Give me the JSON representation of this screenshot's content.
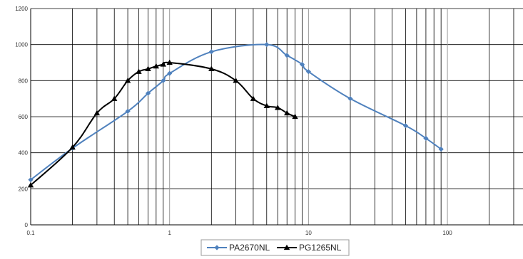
{
  "chart_data": {
    "type": "line",
    "title": "",
    "xlabel": "",
    "ylabel": "",
    "x_scale": "log",
    "xlim": [
      0.1,
      350
    ],
    "ylim": [
      0,
      1200
    ],
    "grid": true,
    "legend_position": "bottom",
    "x_tick_labels": [
      "0.1",
      "1",
      "10",
      "100"
    ],
    "y_tick_labels": [
      "0",
      "200",
      "400",
      "600",
      "800",
      "1000",
      "1200"
    ],
    "y_ticks": [
      0,
      200,
      400,
      600,
      800,
      1000,
      1200
    ],
    "series": [
      {
        "name": "PA2670NL",
        "color": "#4f81bd",
        "marker": "diamond",
        "x": [
          0.1,
          0.2,
          0.5,
          0.7,
          0.9,
          1,
          2,
          5,
          7,
          9,
          10,
          20,
          50,
          70,
          90
        ],
        "y": [
          250,
          425,
          630,
          730,
          800,
          840,
          960,
          1000,
          940,
          890,
          850,
          700,
          550,
          480,
          420
        ]
      },
      {
        "name": "PG1265NL",
        "color": "#000000",
        "marker": "triangle",
        "x": [
          0.1,
          0.2,
          0.3,
          0.4,
          0.5,
          0.6,
          0.7,
          0.8,
          0.9,
          1,
          2,
          3,
          4,
          5,
          6,
          7,
          8
        ],
        "y": [
          220,
          430,
          620,
          700,
          800,
          850,
          865,
          880,
          890,
          900,
          865,
          800,
          700,
          660,
          650,
          620,
          600
        ]
      }
    ]
  }
}
